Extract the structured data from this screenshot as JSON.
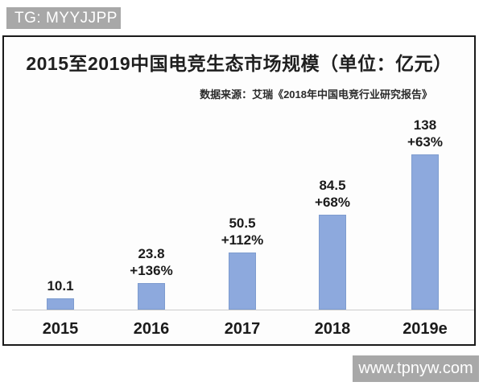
{
  "badges": {
    "tg_label": "TG: MYYJJPP",
    "watermark_label": "www.tpnyw.com",
    "badge_color": "#a8a8a8"
  },
  "chart": {
    "title": "2015至2019中国电竞生态市场规模（单位：亿元）",
    "source_note": "数据来源：艾瑞《2018年中国电竞行业研究报告》"
  },
  "chart_data": {
    "type": "bar",
    "title": "2015至2019中国电竞生态市场规模（单位：亿元）",
    "source_note": "数据来源：艾瑞《2018年中国电竞行业研究报告》",
    "categories": [
      "2015",
      "2016",
      "2017",
      "2018",
      "2019e"
    ],
    "values": [
      10.1,
      23.8,
      50.5,
      84.5,
      138
    ],
    "value_labels": [
      "10.1",
      "23.8",
      "50.5",
      "84.5",
      "138"
    ],
    "growth_labels": [
      "",
      "+136%",
      "+112%",
      "+68%",
      "+63%"
    ],
    "unit": "亿元",
    "xlabel": "",
    "ylabel": "",
    "ylim": [
      0,
      150
    ],
    "grid": false,
    "legend_position": "none",
    "bar_color": "#8da9dd",
    "bar_border_color": "#7e9ccf",
    "axis_line_color": "#cccccc"
  }
}
